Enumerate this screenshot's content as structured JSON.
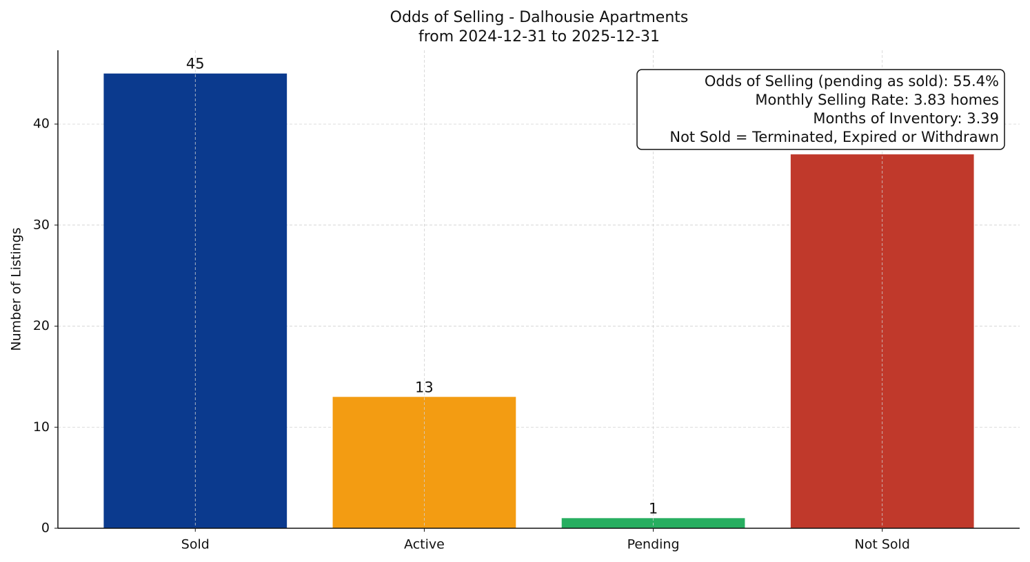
{
  "chart_data": {
    "type": "bar",
    "title": "Odds of Selling - Dalhousie Apartments",
    "subtitle": "from 2024-12-31 to 2025-12-31",
    "y_label": "Number of Listings",
    "categories": [
      "Sold",
      "Active",
      "Pending",
      "Not Sold"
    ],
    "values": [
      45,
      13,
      1,
      37
    ],
    "colors": [
      "#0b3a8e",
      "#f39c12",
      "#27ae60",
      "#c0392b"
    ],
    "ylim": [
      0,
      47.3
    ],
    "yticks": [
      0,
      10,
      20,
      30,
      40
    ],
    "grid": true,
    "annotation_lines": [
      "Odds of Selling (pending as sold): 55.4%",
      "Monthly Selling Rate: 3.83 homes",
      "Months of Inventory: 3.39",
      "Not Sold = Terminated, Expired or Withdrawn"
    ],
    "legend_position": "upper right"
  }
}
